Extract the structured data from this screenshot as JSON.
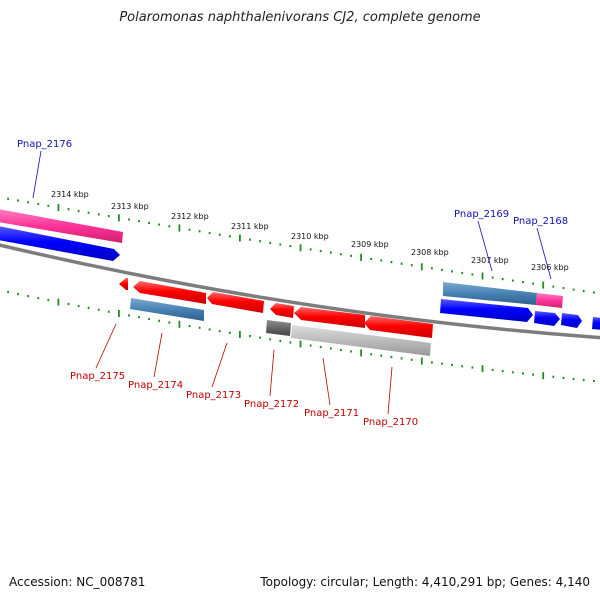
{
  "title": "Polaromonas naphthalenivorans CJ2, complete genome",
  "accession": "Accession: NC_008781",
  "topology": "Topology: circular; Length: 4,410,291 bp; Genes: 4,140",
  "ruler_labels": [
    "2314 kbp",
    "2313 kbp",
    "2312 kbp",
    "2311 kbp",
    "2310 kbp",
    "2309 kbp",
    "2308 kbp",
    "2307 kbp",
    "2306 kbp"
  ],
  "gene_labels_top": [
    "Pnap_2176",
    "Pnap_2169",
    "Pnap_2168"
  ],
  "gene_labels_bottom": [
    "Pnap_2175",
    "Pnap_2174",
    "Pnap_2173",
    "Pnap_2172",
    "Pnap_2171",
    "Pnap_2170"
  ],
  "colors": {
    "forward_cds": "#ff0000",
    "reverse_cds": "#0000ff",
    "gene_pink": "#ff3399",
    "gene_steelblue": "#4682b4",
    "gene_gray": "#bbbbbb",
    "gene_darkgray": "#666666",
    "backbone": "#808080",
    "tick": "#228b22"
  }
}
